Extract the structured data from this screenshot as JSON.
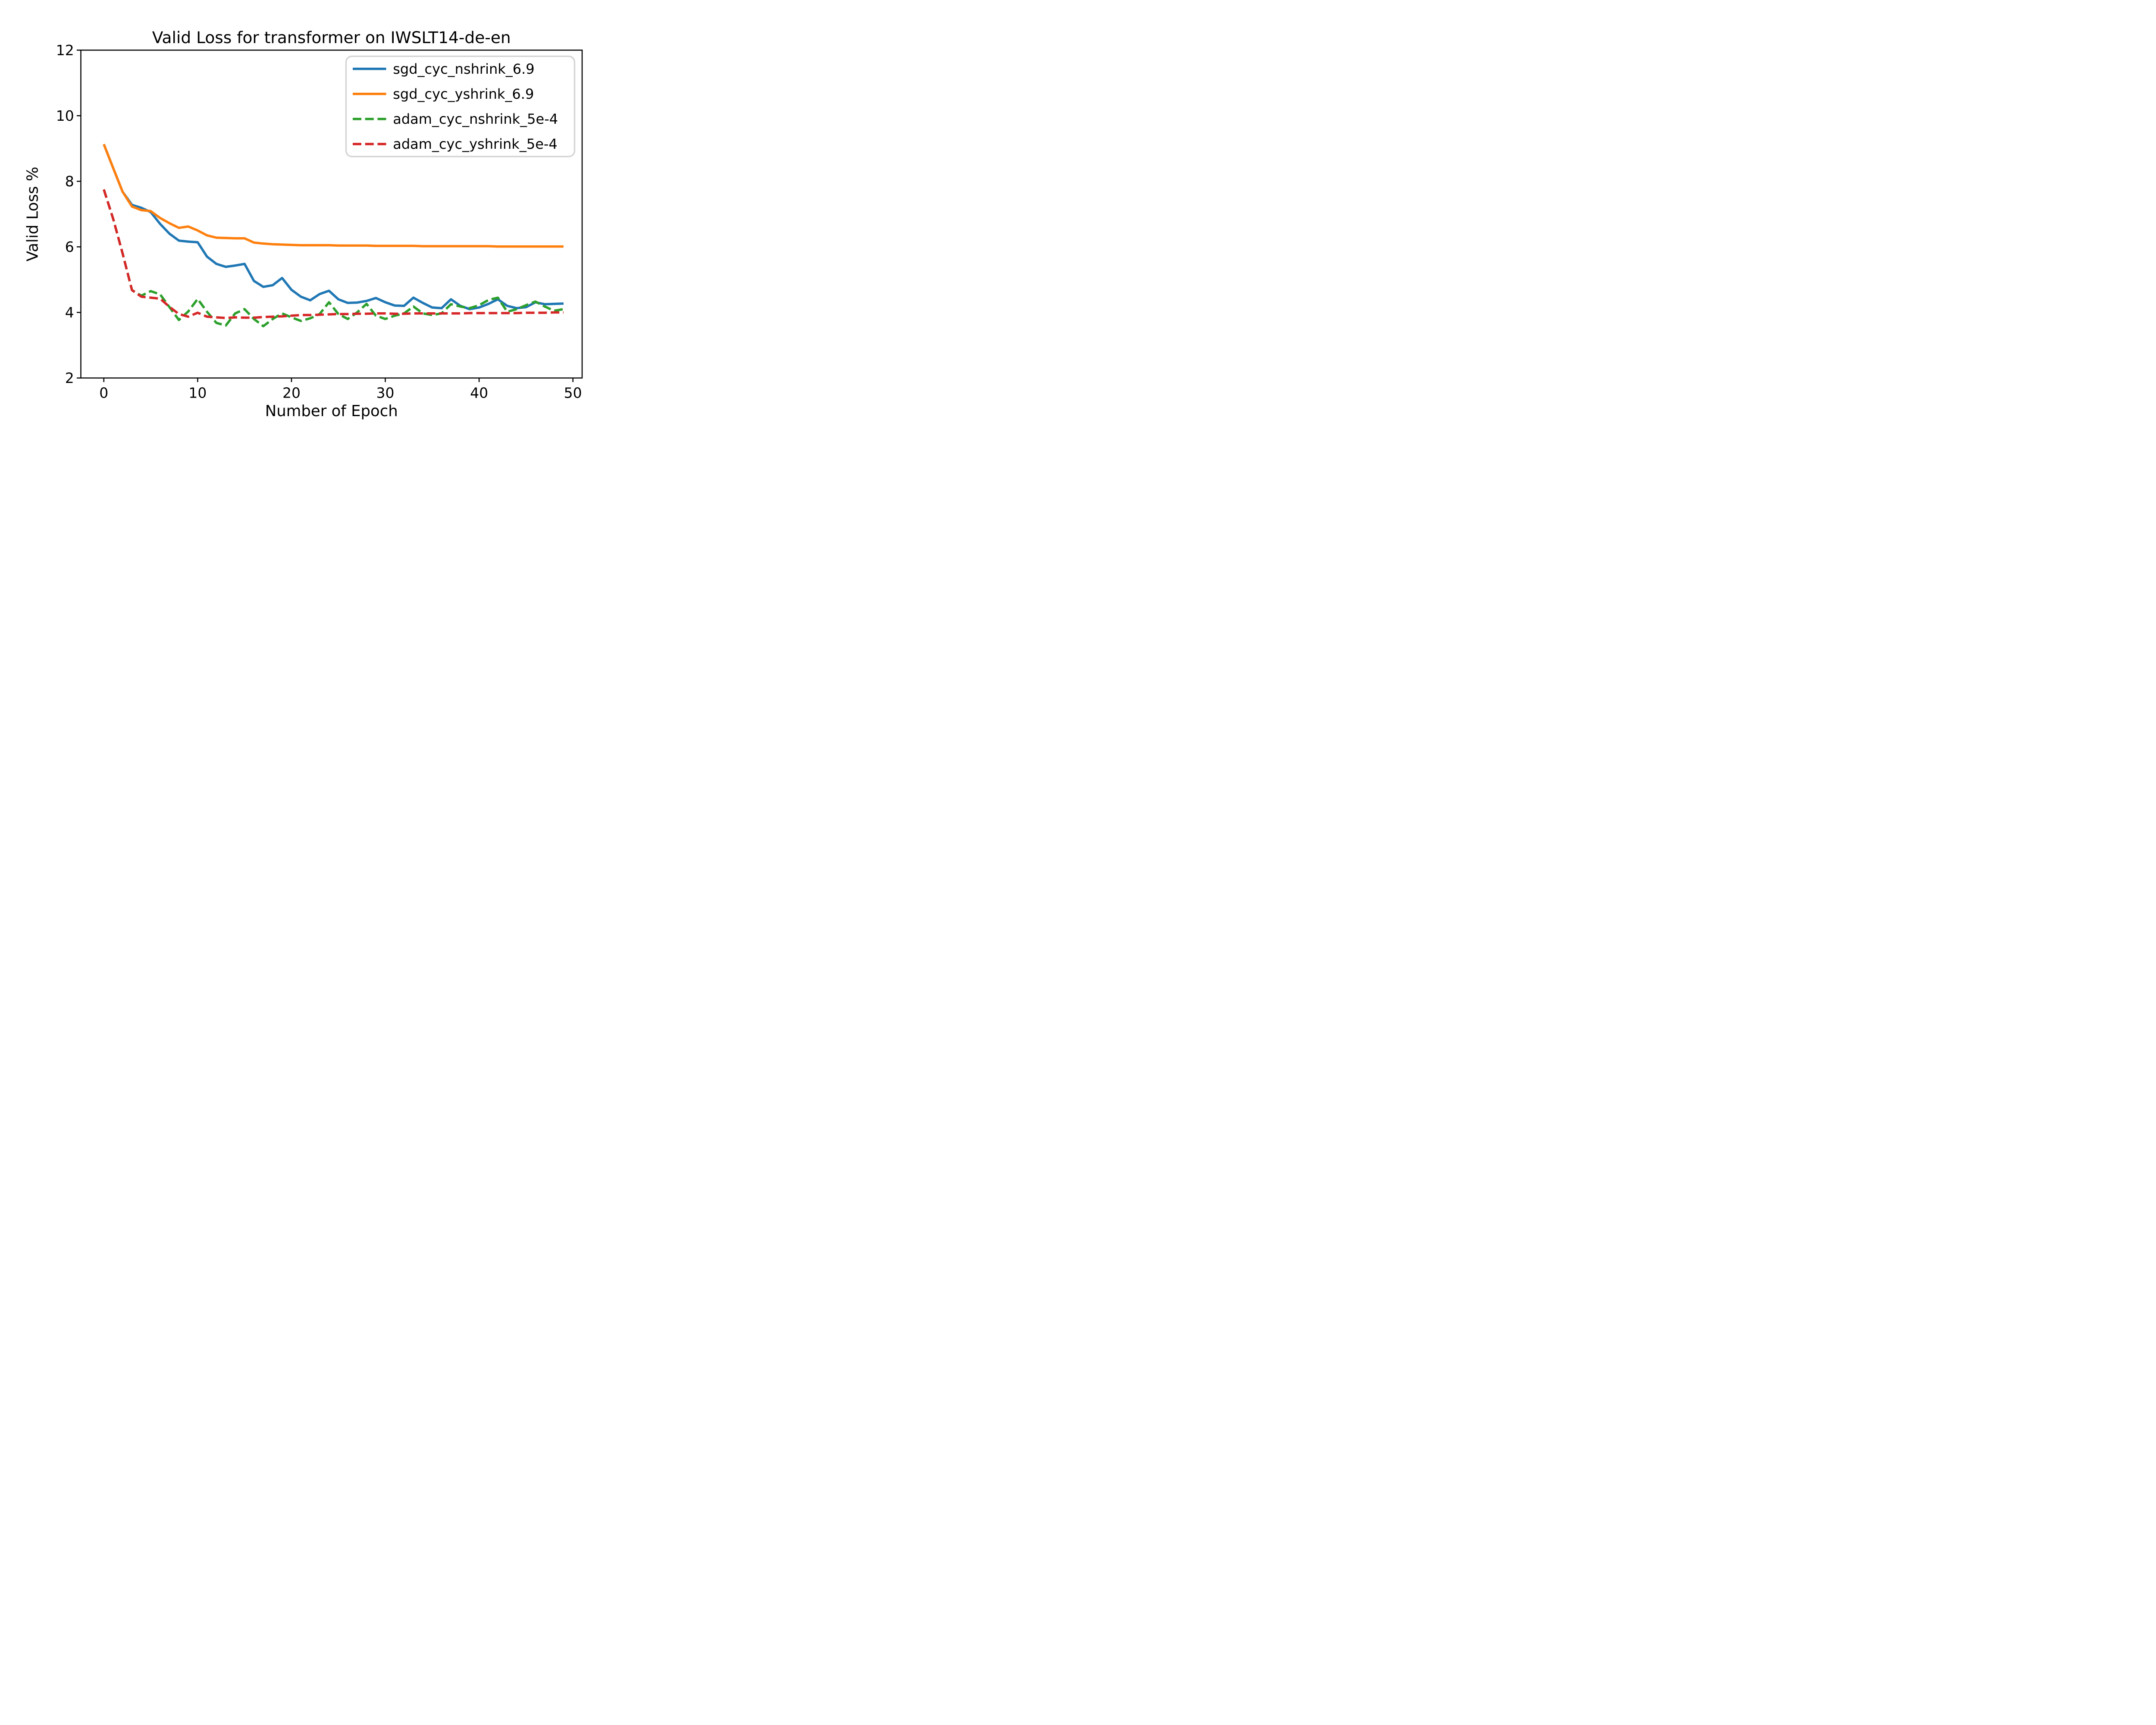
{
  "figure": {
    "background_color": "#ffffff",
    "spine_color": "#000000",
    "legend_frame_color": "#d3d3d3"
  },
  "chart_data": {
    "type": "line",
    "title": "Valid Loss for transformer on IWSLT14-de-en",
    "xlabel": "Number of Epoch",
    "ylabel": "Valid Loss %",
    "xlim": [
      -2.45,
      50.98
    ],
    "ylim": [
      2,
      12
    ],
    "xticks": [
      "0",
      "10",
      "20",
      "30",
      "40",
      "50"
    ],
    "xtick_values": [
      0,
      10,
      20,
      30,
      40,
      50
    ],
    "yticks": [
      "2",
      "4",
      "6",
      "8",
      "10",
      "12"
    ],
    "ytick_values": [
      2,
      4,
      6,
      8,
      10,
      12
    ],
    "grid": false,
    "legend_position": "upper right",
    "x": [
      0,
      1,
      2,
      3,
      4,
      5,
      6,
      7,
      8,
      9,
      10,
      11,
      12,
      13,
      14,
      15,
      16,
      17,
      18,
      19,
      20,
      21,
      22,
      23,
      24,
      25,
      26,
      27,
      28,
      29,
      30,
      31,
      32,
      33,
      34,
      35,
      36,
      37,
      38,
      39,
      40,
      41,
      42,
      43,
      44,
      45,
      46,
      47,
      48,
      49
    ],
    "series": [
      {
        "name": "sgd_cyc_nshrink_6.9",
        "color": "#1f77b4",
        "style": "solid",
        "values": [
          9.13,
          8.4,
          7.68,
          7.28,
          7.19,
          7.06,
          6.7,
          6.4,
          6.19,
          6.16,
          6.14,
          5.7,
          5.48,
          5.39,
          5.43,
          5.48,
          4.96,
          4.78,
          4.83,
          5.05,
          4.69,
          4.48,
          4.37,
          4.56,
          4.66,
          4.4,
          4.29,
          4.3,
          4.35,
          4.44,
          4.31,
          4.21,
          4.2,
          4.45,
          4.29,
          4.15,
          4.13,
          4.4,
          4.2,
          4.1,
          4.15,
          4.26,
          4.4,
          4.2,
          4.13,
          4.16,
          4.31,
          4.25,
          4.26,
          4.27
        ]
      },
      {
        "name": "sgd_cyc_yshrink_6.9",
        "color": "#ff7f0e",
        "style": "solid",
        "values": [
          9.13,
          8.4,
          7.68,
          7.23,
          7.12,
          7.09,
          6.88,
          6.72,
          6.58,
          6.62,
          6.5,
          6.35,
          6.28,
          6.27,
          6.26,
          6.26,
          6.13,
          6.1,
          6.08,
          6.07,
          6.06,
          6.05,
          6.05,
          6.05,
          6.05,
          6.04,
          6.04,
          6.04,
          6.04,
          6.03,
          6.03,
          6.03,
          6.03,
          6.03,
          6.02,
          6.02,
          6.02,
          6.02,
          6.02,
          6.02,
          6.02,
          6.02,
          6.01,
          6.01,
          6.01,
          6.01,
          6.01,
          6.01,
          6.01,
          6.01
        ]
      },
      {
        "name": "adam_cyc_nshrink_5e-4",
        "color": "#2ca02c",
        "style": "dashed",
        "values": [
          7.75,
          6.85,
          5.8,
          4.68,
          4.51,
          4.65,
          4.55,
          4.16,
          3.77,
          4.03,
          4.41,
          4.02,
          3.68,
          3.6,
          3.97,
          4.1,
          3.8,
          3.58,
          3.8,
          3.97,
          3.85,
          3.74,
          3.82,
          3.95,
          4.31,
          3.95,
          3.8,
          4.0,
          4.26,
          3.9,
          3.8,
          3.9,
          3.97,
          4.18,
          3.97,
          3.92,
          3.97,
          4.25,
          4.18,
          4.13,
          4.22,
          4.38,
          4.45,
          4.02,
          4.1,
          4.22,
          4.33,
          4.18,
          4.05,
          4.1
        ]
      },
      {
        "name": "adam_cyc_yshrink_5e-4",
        "color": "#d62728",
        "style": "dashed",
        "values": [
          7.75,
          6.85,
          5.8,
          4.68,
          4.48,
          4.45,
          4.42,
          4.17,
          3.95,
          3.87,
          3.99,
          3.87,
          3.85,
          3.83,
          3.85,
          3.84,
          3.84,
          3.86,
          3.87,
          3.88,
          3.9,
          3.92,
          3.92,
          3.93,
          3.94,
          3.95,
          3.95,
          3.96,
          3.96,
          3.97,
          3.97,
          3.96,
          3.96,
          3.97,
          3.97,
          3.97,
          3.97,
          3.97,
          3.97,
          3.98,
          3.98,
          3.98,
          3.98,
          3.98,
          3.98,
          3.99,
          3.99,
          3.99,
          4.0,
          4.0
        ]
      }
    ]
  }
}
